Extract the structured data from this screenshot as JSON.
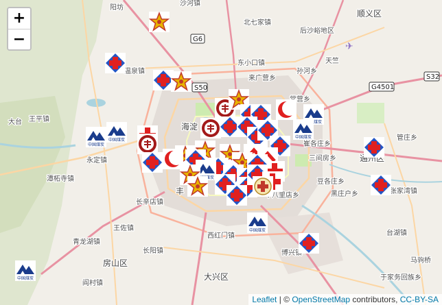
{
  "controls": {
    "zoom_in": "+",
    "zoom_out": "−"
  },
  "attribution": {
    "leaflet": "Leaflet",
    "separator": " | © ",
    "osm": "OpenStreetMap",
    "contributors": " contributors, ",
    "license": "CC-BY-SA"
  },
  "place_labels": [
    "阳坊",
    "沙河镇",
    "北七家镇",
    "顺义区",
    "后沙峪地区",
    "温泉镇",
    "东小口镇",
    "来广营乡",
    "孙河乡",
    "天竺",
    "王平镇",
    "海淀",
    "常营乡",
    "大台",
    "永定镇",
    "管庄乡",
    "通州区",
    "潭柘寺镇",
    "三间房乡",
    "豆各庄乡",
    "长辛店镇",
    "王佐镇",
    "黑庄户乡",
    "张家湾镇",
    "青龙湖镇",
    "长阳镇",
    "西红门镇",
    "房山区",
    "大兴区",
    "阎村镇",
    "于家务回族乡",
    "台湖镇",
    "马驹桥",
    "博兴镇",
    "十八里店乡",
    "崔各庄乡",
    "丰"
  ],
  "road_shields": [
    "G6",
    "S50",
    "G4501",
    "S32"
  ],
  "markers": {
    "star": "star-marker",
    "blue_cross": "blue-cross-marker",
    "red_crescent": "red-crescent-marker",
    "red_cross": "red-cross-marker",
    "coal_logo": "coal-mine-logo-marker",
    "pku_seal": "university-seal-marker",
    "chevron": "chevron-marker",
    "emblem": "emblem-marker"
  },
  "logo_text": "中国煤炭"
}
